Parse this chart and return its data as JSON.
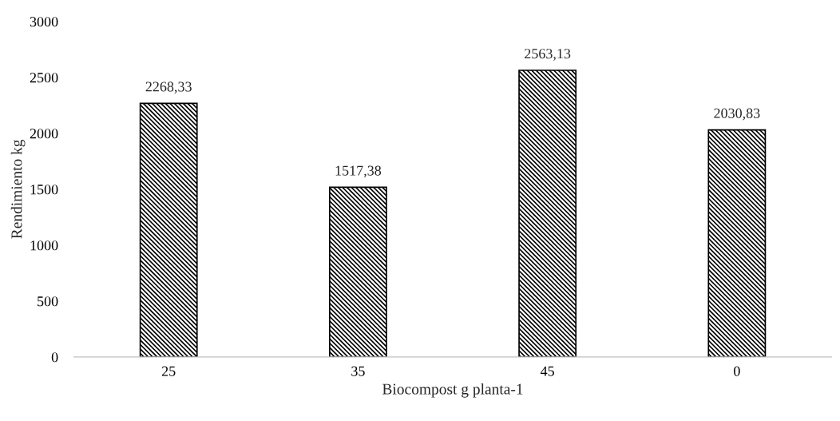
{
  "chart_data": {
    "type": "bar",
    "xlabel": "Biocompost g planta-1",
    "ylabel": "Rendimiento kg",
    "categories": [
      "25",
      "35",
      "45",
      "0"
    ],
    "values": [
      2268.33,
      1517.38,
      2563.13,
      2030.83
    ],
    "value_labels": [
      "2268,33",
      "1517,38",
      "2563,13",
      "2030,83"
    ],
    "color": "#000000",
    "ylim": [
      0,
      3000
    ],
    "yticks": [
      0,
      500,
      1000,
      1500,
      2000,
      2500,
      3000
    ],
    "grid": false
  }
}
